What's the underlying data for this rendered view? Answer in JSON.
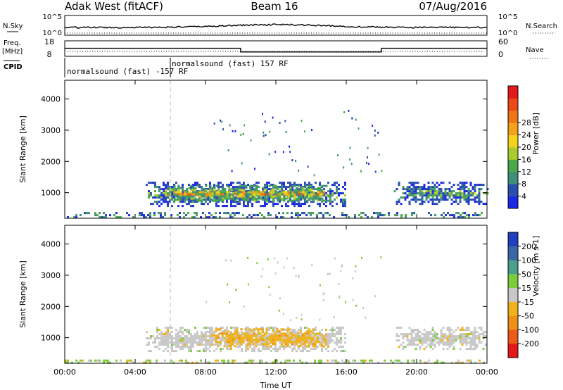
{
  "header": {
    "station": "Adak West (fitACF)",
    "beam": "Beam 16",
    "date": "07/Aug/2016"
  },
  "top_panels": {
    "nsky_label": "N.Sky",
    "nsky_ticks": [
      "10^5",
      "10^0"
    ],
    "nsearch_label": "N.Search",
    "nsearch_ticks": [
      "10^5",
      "10^0"
    ],
    "freq_label_1": "Freq.",
    "freq_label_2": "[MHz]",
    "freq_ticks": [
      "18",
      "8"
    ],
    "nave_label": "Nave",
    "nave_ticks": [
      "60",
      "0"
    ],
    "cpid_label": "CPID",
    "cpid_segments": [
      {
        "label": "normalsound (fast) -157 RF",
        "start_h": 0,
        "end_h": 6
      },
      {
        "label": "normalsound (fast) 157 RF",
        "start_h": 6,
        "end_h": 24
      }
    ],
    "freq_series": [
      {
        "start_h": 0,
        "end_h": 10,
        "value": 13.2
      },
      {
        "start_h": 10,
        "end_h": 18,
        "value": 10.8
      },
      {
        "start_h": 18,
        "end_h": 24,
        "value": 13.2
      }
    ]
  },
  "chart_data": [
    {
      "type": "heatmap",
      "panel": "power",
      "ylabel": "Slant Range [km]",
      "x_ticks": [
        "00:00",
        "04:00",
        "08:00",
        "12:00",
        "16:00",
        "20:00",
        "00:00"
      ],
      "xlim_hours": [
        0,
        24
      ],
      "ylim_km": [
        180,
        4600
      ],
      "y_ticks": [
        1000,
        2000,
        3000,
        4000
      ],
      "colorbar": {
        "label": "Power [dB]",
        "ticks": [
          "4",
          "8",
          "12",
          "16",
          "20",
          "24",
          "28"
        ],
        "colors": [
          "#1d28e6",
          "#2a4fae",
          "#3f8f7a",
          "#4aa84a",
          "#a8cc2e",
          "#f5d21c",
          "#f4a21a",
          "#f07418",
          "#ec4818",
          "#e41a1a"
        ]
      },
      "echo_regions": [
        {
          "start_h": 4.6,
          "end_h": 16.0,
          "range_lo_km": 600,
          "range_hi_km": 1350,
          "level": "low-mid"
        },
        {
          "start_h": 5.7,
          "end_h": 15.0,
          "range_lo_km": 750,
          "range_hi_km": 1250,
          "level": "mid-high"
        },
        {
          "start_h": 18.7,
          "end_h": 24.0,
          "range_lo_km": 650,
          "range_hi_km": 1350,
          "level": "low-mid"
        },
        {
          "start_h": 0.0,
          "end_h": 24.0,
          "range_lo_km": 180,
          "range_hi_km": 380,
          "level": "low"
        }
      ]
    },
    {
      "type": "heatmap",
      "panel": "velocity",
      "xlabel": "Time UT",
      "ylabel": "Slant Range [km]",
      "x_ticks": [
        "00:00",
        "04:00",
        "08:00",
        "12:00",
        "16:00",
        "20:00",
        "00:00"
      ],
      "xlim_hours": [
        0,
        24
      ],
      "ylim_km": [
        180,
        4600
      ],
      "y_ticks": [
        1000,
        2000,
        3000,
        4000
      ],
      "colorbar": {
        "label": "Velocity [m s-1]",
        "ticks": [
          "200",
          "100",
          "50",
          "15",
          "-15",
          "-50",
          "-100",
          "-200"
        ],
        "colors": [
          "#2040c0",
          "#3a66a8",
          "#4aa08a",
          "#7ccc3c",
          "#c8c8c8",
          "#f0b21c",
          "#f09018",
          "#ec5a18",
          "#e41a1a"
        ]
      },
      "echo_regions": [
        {
          "start_h": 4.6,
          "end_h": 16.0,
          "range_lo_km": 600,
          "range_hi_km": 1350,
          "value_ms": 0
        },
        {
          "start_h": 8.3,
          "end_h": 14.8,
          "range_lo_km": 700,
          "range_hi_km": 1300,
          "value_ms": -40
        },
        {
          "start_h": 18.7,
          "end_h": 24.0,
          "range_lo_km": 650,
          "range_hi_km": 1350,
          "value_ms": 0
        },
        {
          "start_h": 0.0,
          "end_h": 24.0,
          "range_lo_km": 180,
          "range_hi_km": 300,
          "value_ms": 20
        }
      ]
    }
  ]
}
